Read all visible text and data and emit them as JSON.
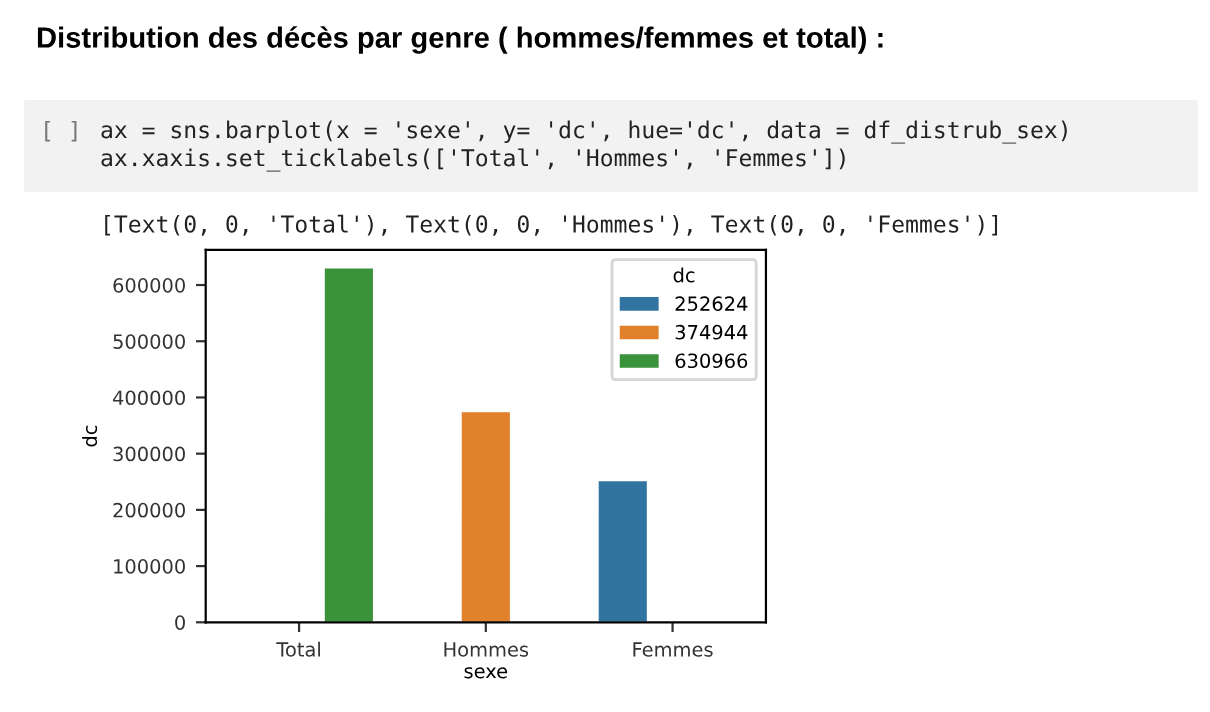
{
  "chart_data": {
    "type": "bar",
    "title": "Distribution des décès par genre ( hommes/femmes et total) :",
    "annotations": [
      "[ ]",
      "ax = sns.barplot(x = 'sexe', y= 'dc', hue='dc', data = df_distrub_sex)",
      "ax.xaxis.set_ticklabels(['Total', 'Hommes', 'Femmes'])",
      "[Text(0, 0, 'Total'), Text(0, 0, 'Hommes'), Text(0, 0, 'Femmes')]"
    ],
    "categories": [
      "Total",
      "Hommes",
      "Femmes"
    ],
    "series": [
      {
        "name": "252624",
        "color": "#3274a1",
        "values": [
          null,
          null,
          252624
        ]
      },
      {
        "name": "374944",
        "color": "#e1812c",
        "values": [
          null,
          374944,
          null
        ]
      },
      {
        "name": "630966",
        "color": "#3a923a",
        "values": [
          630966,
          null,
          null
        ]
      }
    ],
    "xlabel": "sexe",
    "ylabel": "dc",
    "legend_title": "dc",
    "legend": "top right",
    "ylim": [
      0,
      662500
    ],
    "yticks": [
      0,
      100000,
      200000,
      300000,
      400000,
      500000,
      600000
    ],
    "grid": false
  }
}
